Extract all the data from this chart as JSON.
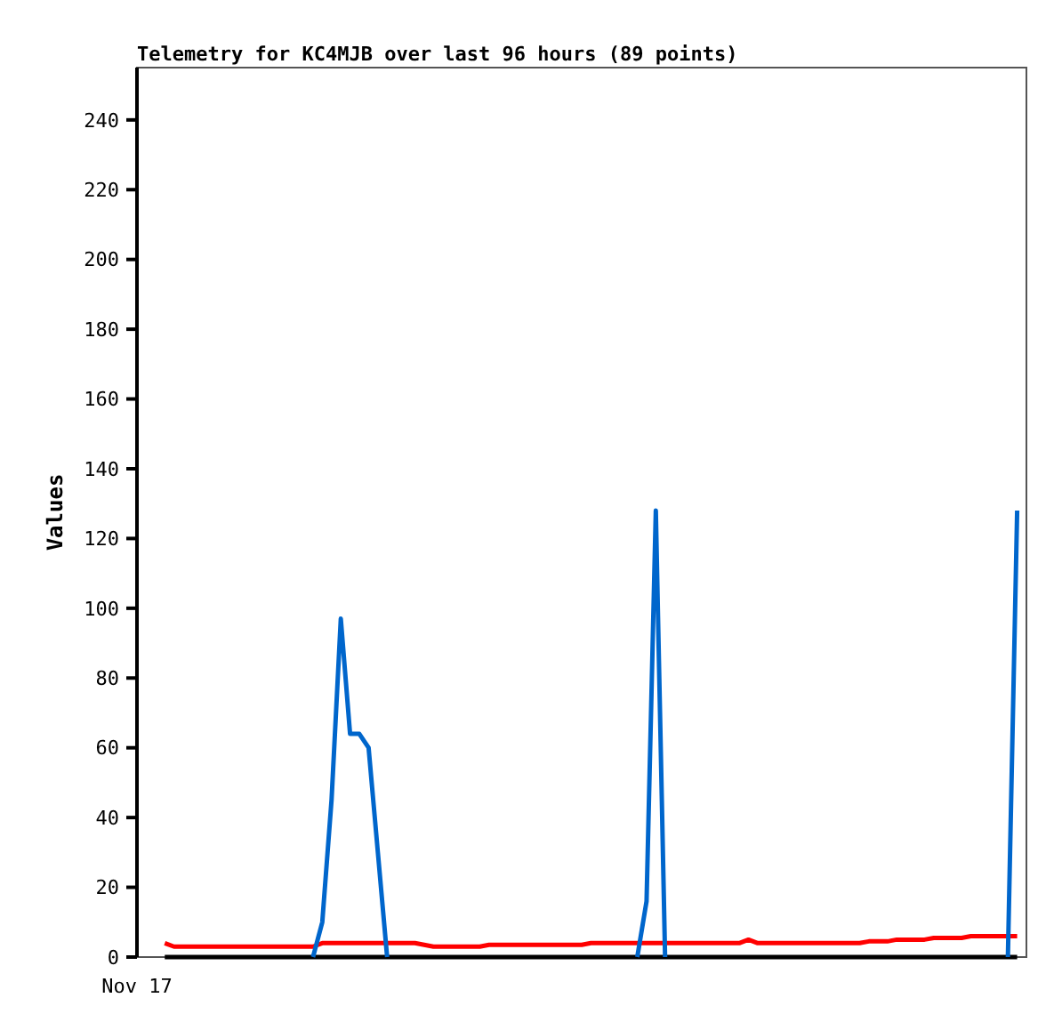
{
  "chart_data": {
    "type": "line",
    "title": "Telemetry for KC4MJB over last 96 hours (89 points)",
    "ylabel": "Values",
    "categories": [
      "Nov 17",
      null,
      null,
      null,
      null,
      null,
      null,
      null,
      null,
      null,
      null,
      null,
      null,
      null,
      null,
      null,
      null,
      null,
      null,
      null,
      null,
      null,
      null,
      null,
      null,
      null,
      null,
      null,
      null,
      null,
      null,
      null,
      null,
      null,
      null,
      null,
      null,
      null,
      null,
      null,
      null,
      null,
      null,
      null,
      null,
      null,
      null,
      null,
      null,
      null,
      null,
      null,
      null,
      null,
      null,
      null,
      null,
      null,
      null,
      null,
      null,
      null,
      null,
      null,
      null,
      null,
      null,
      null,
      null,
      null,
      null,
      null,
      null,
      null,
      null,
      null,
      null,
      null,
      null,
      null,
      null,
      null,
      null,
      null,
      null,
      null,
      null,
      null,
      null,
      null,
      null,
      null,
      null,
      null,
      null,
      null,
      null
    ],
    "ylim": [
      0,
      255
    ],
    "yticks": [
      0,
      20,
      40,
      60,
      80,
      100,
      120,
      140,
      160,
      180,
      200,
      220,
      240
    ],
    "grid": false,
    "marker": "none",
    "line_style": "solid",
    "series": [
      {
        "color": "#000000",
        "values": [
          null,
          null,
          null,
          0,
          0,
          0,
          0,
          0,
          0,
          0,
          0,
          0,
          0,
          0,
          0,
          0,
          0,
          0,
          0,
          0,
          0,
          0,
          0,
          0,
          0,
          0,
          0,
          0,
          0,
          0,
          0,
          0,
          0,
          0,
          0,
          0,
          0,
          0,
          0,
          0,
          0,
          0,
          0,
          0,
          0,
          0,
          0,
          0,
          0,
          0,
          0,
          0,
          0,
          0,
          0,
          0,
          0,
          0,
          0,
          0,
          0,
          0,
          0,
          0,
          0,
          0,
          0,
          0,
          0,
          0,
          0,
          0,
          0,
          0,
          0,
          0,
          0,
          0,
          0,
          0,
          0,
          0,
          0,
          0,
          0,
          0,
          0,
          0,
          0,
          0,
          0,
          0,
          0,
          0,
          0,
          0,
          null
        ]
      },
      {
        "color": "#ff0000",
        "values": [
          null,
          null,
          null,
          4,
          3,
          3,
          3,
          3,
          3,
          3,
          3,
          3,
          3,
          3,
          3,
          3,
          3,
          3,
          3,
          3,
          4,
          4,
          4,
          4,
          4,
          4,
          4,
          4,
          4,
          4,
          4,
          3.5,
          3,
          3,
          3,
          3,
          3,
          3,
          3.5,
          3.5,
          3.5,
          3.5,
          3.5,
          3.5,
          3.5,
          3.5,
          3.5,
          3.5,
          3.5,
          4,
          4,
          4,
          4,
          4,
          4,
          4,
          4,
          4,
          4,
          4,
          4,
          4,
          4,
          4,
          4,
          4,
          5,
          4,
          4,
          4,
          4,
          4,
          4,
          4,
          4,
          4,
          4,
          4,
          4,
          4.5,
          4.5,
          4.5,
          5,
          5,
          5,
          5,
          5.5,
          5.5,
          5.5,
          5.5,
          6,
          6,
          6,
          6,
          6,
          6,
          null
        ]
      },
      {
        "color": "#0066cc",
        "values": [
          null,
          null,
          null,
          null,
          null,
          null,
          null,
          null,
          null,
          null,
          null,
          null,
          null,
          null,
          null,
          null,
          null,
          null,
          null,
          0,
          10,
          45,
          97,
          64,
          64,
          60,
          30,
          0,
          null,
          null,
          null,
          null,
          null,
          null,
          null,
          null,
          null,
          null,
          null,
          null,
          null,
          null,
          null,
          null,
          null,
          null,
          null,
          null,
          null,
          null,
          null,
          null,
          null,
          null,
          0,
          16,
          128,
          0,
          null,
          null,
          null,
          null,
          null,
          null,
          null,
          null,
          null,
          null,
          null,
          null,
          null,
          null,
          null,
          null,
          null,
          null,
          null,
          null,
          null,
          null,
          null,
          null,
          null,
          null,
          null,
          null,
          null,
          null,
          null,
          null,
          null,
          null,
          null,
          null,
          0,
          128,
          null
        ]
      }
    ]
  }
}
